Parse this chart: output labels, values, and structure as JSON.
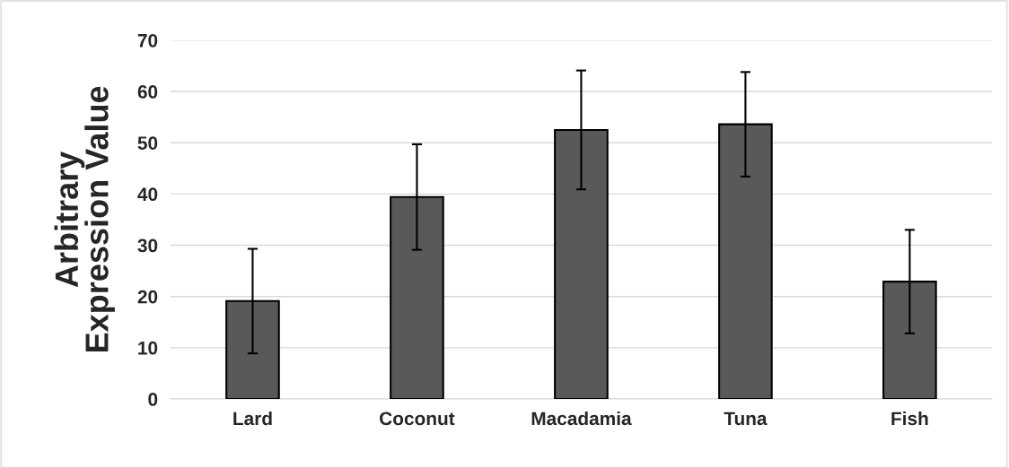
{
  "chart_data": {
    "type": "bar",
    "ylabel": "Arbitrary\nExpression Value",
    "categories": [
      "Lard",
      "Coconut",
      "Macadamia",
      "Tuna",
      "Fish"
    ],
    "values": [
      19.1,
      39.4,
      52.5,
      53.6,
      22.9
    ],
    "errors": [
      10.2,
      10.3,
      11.6,
      10.2,
      10.1
    ],
    "color": "#595959",
    "ylim": [
      0,
      70
    ],
    "yticks": [
      0,
      10,
      20,
      30,
      40,
      50,
      60,
      70
    ],
    "grid": "y",
    "legend": false
  }
}
